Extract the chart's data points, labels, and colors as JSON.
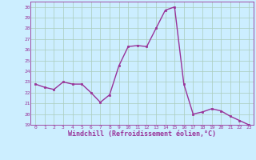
{
  "x": [
    0,
    1,
    2,
    3,
    4,
    5,
    6,
    7,
    8,
    9,
    10,
    11,
    12,
    13,
    14,
    15,
    16,
    17,
    18,
    19,
    20,
    21,
    22,
    23
  ],
  "y": [
    22.8,
    22.5,
    22.3,
    23.0,
    22.8,
    22.8,
    22.0,
    21.1,
    21.8,
    24.5,
    26.3,
    26.4,
    26.3,
    28.0,
    29.7,
    30.0,
    22.8,
    20.0,
    20.2,
    20.5,
    20.3,
    19.8,
    19.4,
    19.0
  ],
  "line_color": "#993399",
  "marker": "s",
  "marker_size": 2,
  "bg_color": "#cceeff",
  "grid_color": "#aaccbb",
  "xlabel": "Windchill (Refroidissement éolien,°C)",
  "xlabel_color": "#993399",
  "tick_color": "#993399",
  "ylim": [
    19,
    30.5
  ],
  "yticks": [
    19,
    20,
    21,
    22,
    23,
    24,
    25,
    26,
    27,
    28,
    29,
    30
  ],
  "xticks": [
    0,
    1,
    2,
    3,
    4,
    5,
    6,
    7,
    8,
    9,
    10,
    11,
    12,
    13,
    14,
    15,
    16,
    17,
    18,
    19,
    20,
    21,
    22,
    23
  ],
  "line_width": 1.0
}
